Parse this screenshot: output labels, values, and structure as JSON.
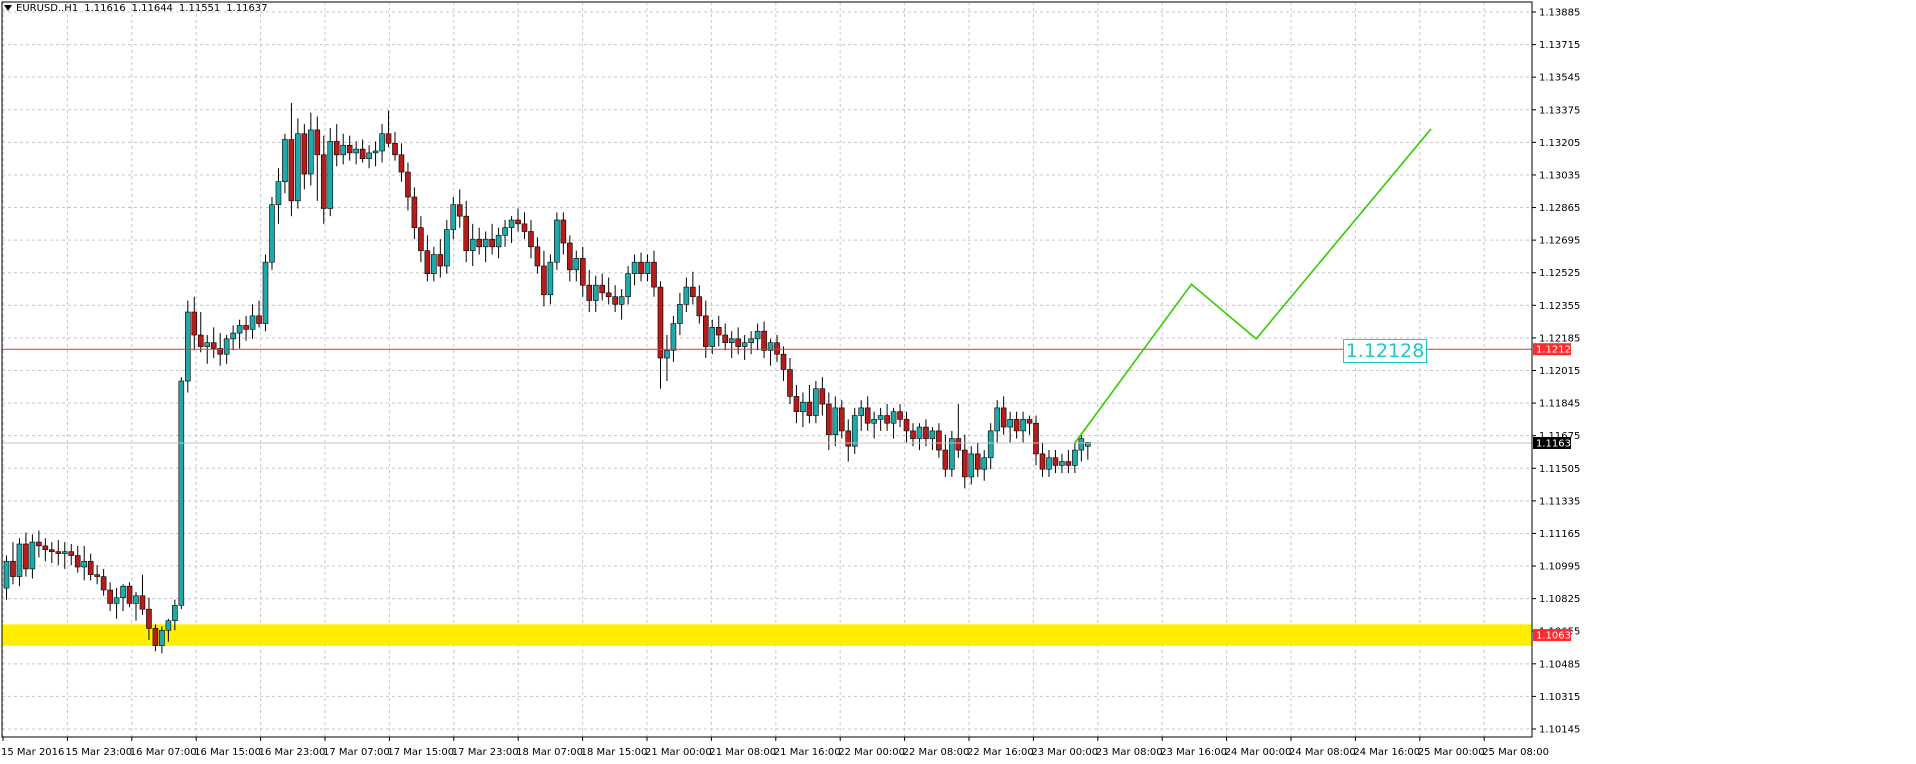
{
  "header": {
    "symbol": "EURUSD..H1",
    "open": "1.11616",
    "high": "1.11644",
    "low": "1.11551",
    "close": "1.11637"
  },
  "colors": {
    "grid": "#c8c8c8",
    "bull": "#1fa9a9",
    "bear": "#b71c1c",
    "wick": "#000000",
    "resistance": "#ff2a2a",
    "support_band": "#ffee00",
    "forecast": "#33cc00",
    "current_price_line": "#c0c0c0",
    "label_text": "#1fc7c7"
  },
  "chart_data": {
    "type": "candlestick",
    "ylim": [
      1.10145,
      1.13885
    ],
    "y_ticks": [
      "1.13885",
      "1.13715",
      "1.13545",
      "1.13375",
      "1.13205",
      "1.13035",
      "1.12865",
      "1.12695",
      "1.12525",
      "1.12355",
      "1.12185",
      "1.12015",
      "1.11845",
      "1.11675",
      "1.11505",
      "1.11335",
      "1.11165",
      "1.10995",
      "1.10825",
      "1.10655",
      "1.10485",
      "1.10315",
      "1.10145"
    ],
    "x_labels": [
      "15 Mar 2016",
      "15 Mar 23:00",
      "16 Mar 07:00",
      "16 Mar 15:00",
      "16 Mar 23:00",
      "17 Mar 07:00",
      "17 Mar 15:00",
      "17 Mar 23:00",
      "18 Mar 07:00",
      "18 Mar 15:00",
      "21 Mar 00:00",
      "21 Mar 08:00",
      "21 Mar 16:00",
      "22 Mar 00:00",
      "22 Mar 08:00",
      "22 Mar 16:00",
      "23 Mar 00:00",
      "23 Mar 08:00",
      "23 Mar 16:00",
      "24 Mar 00:00",
      "24 Mar 08:00",
      "24 Mar 16:00",
      "25 Mar 00:00",
      "25 Mar 08:00"
    ],
    "candles": [
      [
        1.1088,
        1.1105,
        1.1082,
        1.1102
      ],
      [
        1.1102,
        1.1112,
        1.109,
        1.1094
      ],
      [
        1.1094,
        1.1114,
        1.1089,
        1.1111
      ],
      [
        1.1111,
        1.1117,
        1.1094,
        1.1098
      ],
      [
        1.1098,
        1.1116,
        1.1093,
        1.1112
      ],
      [
        1.1112,
        1.1118,
        1.1104,
        1.111
      ],
      [
        1.111,
        1.1114,
        1.1102,
        1.1108
      ],
      [
        1.1108,
        1.1112,
        1.1101,
        1.1107
      ],
      [
        1.1107,
        1.1113,
        1.11,
        1.1106
      ],
      [
        1.1106,
        1.1112,
        1.1098,
        1.1107
      ],
      [
        1.1107,
        1.1111,
        1.11,
        1.1105
      ],
      [
        1.1105,
        1.111,
        1.1096,
        1.1099
      ],
      [
        1.1099,
        1.111,
        1.1092,
        1.1102
      ],
      [
        1.1102,
        1.1106,
        1.1092,
        1.1095
      ],
      [
        1.1095,
        1.11,
        1.109,
        1.1094
      ],
      [
        1.1094,
        1.1098,
        1.1084,
        1.1087
      ],
      [
        1.1087,
        1.1091,
        1.1076,
        1.108
      ],
      [
        1.108,
        1.1088,
        1.1072,
        1.1083
      ],
      [
        1.1083,
        1.109,
        1.1076,
        1.1089
      ],
      [
        1.1089,
        1.1091,
        1.1078,
        1.108
      ],
      [
        1.108,
        1.1086,
        1.1071,
        1.1084
      ],
      [
        1.1084,
        1.1095,
        1.1074,
        1.1077
      ],
      [
        1.1077,
        1.1083,
        1.1061,
        1.1067
      ],
      [
        1.1067,
        1.1069,
        1.1055,
        1.1058
      ],
      [
        1.1058,
        1.1068,
        1.1054,
        1.1066
      ],
      [
        1.1066,
        1.1072,
        1.106,
        1.1071
      ],
      [
        1.1071,
        1.1082,
        1.1066,
        1.1079
      ],
      [
        1.1079,
        1.1198,
        1.1077,
        1.1196
      ],
      [
        1.1196,
        1.1238,
        1.119,
        1.1232
      ],
      [
        1.1232,
        1.124,
        1.1212,
        1.122
      ],
      [
        1.122,
        1.1232,
        1.1211,
        1.1214
      ],
      [
        1.1214,
        1.122,
        1.1205,
        1.1216
      ],
      [
        1.1216,
        1.1224,
        1.1208,
        1.1213
      ],
      [
        1.1213,
        1.1221,
        1.1204,
        1.121
      ],
      [
        1.121,
        1.122,
        1.1205,
        1.1218
      ],
      [
        1.1218,
        1.1225,
        1.1212,
        1.1221
      ],
      [
        1.1221,
        1.1228,
        1.1213,
        1.1225
      ],
      [
        1.1225,
        1.123,
        1.1217,
        1.1223
      ],
      [
        1.1223,
        1.1236,
        1.1218,
        1.123
      ],
      [
        1.123,
        1.1238,
        1.1224,
        1.1226
      ],
      [
        1.1226,
        1.1262,
        1.1222,
        1.1258
      ],
      [
        1.1258,
        1.1292,
        1.1254,
        1.1288
      ],
      [
        1.1288,
        1.1307,
        1.1278,
        1.13
      ],
      [
        1.13,
        1.1325,
        1.1294,
        1.1322
      ],
      [
        1.1322,
        1.1341,
        1.1282,
        1.129
      ],
      [
        1.129,
        1.1333,
        1.1286,
        1.1325
      ],
      [
        1.1325,
        1.133,
        1.1296,
        1.1304
      ],
      [
        1.1304,
        1.1336,
        1.1298,
        1.1327
      ],
      [
        1.1327,
        1.1334,
        1.129,
        1.1314
      ],
      [
        1.1314,
        1.1324,
        1.1278,
        1.1286
      ],
      [
        1.1286,
        1.1328,
        1.1282,
        1.1321
      ],
      [
        1.1321,
        1.133,
        1.1308,
        1.1314
      ],
      [
        1.1314,
        1.1325,
        1.1309,
        1.1319
      ],
      [
        1.1319,
        1.1324,
        1.1311,
        1.1315
      ],
      [
        1.1315,
        1.1321,
        1.1309,
        1.1317
      ],
      [
        1.1317,
        1.1322,
        1.131,
        1.1312
      ],
      [
        1.1312,
        1.1319,
        1.1307,
        1.1315
      ],
      [
        1.1315,
        1.1321,
        1.1308,
        1.1316
      ],
      [
        1.1316,
        1.133,
        1.131,
        1.1325
      ],
      [
        1.1325,
        1.1337,
        1.1318,
        1.132
      ],
      [
        1.132,
        1.1326,
        1.1311,
        1.1314
      ],
      [
        1.1314,
        1.132,
        1.13,
        1.1305
      ],
      [
        1.1305,
        1.131,
        1.1285,
        1.1292
      ],
      [
        1.1292,
        1.1297,
        1.127,
        1.1276
      ],
      [
        1.1276,
        1.1282,
        1.1258,
        1.1264
      ],
      [
        1.1264,
        1.1272,
        1.1248,
        1.1252
      ],
      [
        1.1252,
        1.1266,
        1.1248,
        1.1262
      ],
      [
        1.1262,
        1.127,
        1.125,
        1.1256
      ],
      [
        1.1256,
        1.128,
        1.1252,
        1.1275
      ],
      [
        1.1275,
        1.1292,
        1.127,
        1.1288
      ],
      [
        1.1288,
        1.1296,
        1.1276,
        1.1282
      ],
      [
        1.1282,
        1.129,
        1.1258,
        1.1264
      ],
      [
        1.1264,
        1.1278,
        1.1256,
        1.127
      ],
      [
        1.127,
        1.1276,
        1.1262,
        1.1266
      ],
      [
        1.1266,
        1.1274,
        1.1258,
        1.127
      ],
      [
        1.127,
        1.1278,
        1.1262,
        1.1266
      ],
      [
        1.1266,
        1.1276,
        1.126,
        1.1272
      ],
      [
        1.1272,
        1.128,
        1.1266,
        1.1276
      ],
      [
        1.1276,
        1.1282,
        1.1268,
        1.128
      ],
      [
        1.128,
        1.1286,
        1.1274,
        1.1278
      ],
      [
        1.1278,
        1.1284,
        1.127,
        1.1274
      ],
      [
        1.1274,
        1.128,
        1.126,
        1.1266
      ],
      [
        1.1266,
        1.1271,
        1.1252,
        1.1256
      ],
      [
        1.1256,
        1.1264,
        1.1235,
        1.1241
      ],
      [
        1.1241,
        1.1262,
        1.1236,
        1.1258
      ],
      [
        1.1258,
        1.1284,
        1.1254,
        1.128
      ],
      [
        1.128,
        1.1284,
        1.1262,
        1.1268
      ],
      [
        1.1268,
        1.1272,
        1.1248,
        1.1254
      ],
      [
        1.1254,
        1.1264,
        1.1248,
        1.126
      ],
      [
        1.126,
        1.1266,
        1.124,
        1.1246
      ],
      [
        1.1246,
        1.1254,
        1.1232,
        1.1238
      ],
      [
        1.1238,
        1.1251,
        1.1232,
        1.1246
      ],
      [
        1.1246,
        1.1252,
        1.1238,
        1.1242
      ],
      [
        1.1242,
        1.125,
        1.1236,
        1.124
      ],
      [
        1.124,
        1.1246,
        1.1232,
        1.1236
      ],
      [
        1.1236,
        1.1244,
        1.1228,
        1.124
      ],
      [
        1.124,
        1.1256,
        1.1236,
        1.1252
      ],
      [
        1.1252,
        1.1262,
        1.1246,
        1.1258
      ],
      [
        1.1258,
        1.1263,
        1.1248,
        1.1252
      ],
      [
        1.1252,
        1.1262,
        1.1248,
        1.1258
      ],
      [
        1.1258,
        1.1264,
        1.124,
        1.1245
      ],
      [
        1.1245,
        1.1248,
        1.1192,
        1.1208
      ],
      [
        1.1208,
        1.122,
        1.1196,
        1.1212
      ],
      [
        1.1212,
        1.123,
        1.1206,
        1.1226
      ],
      [
        1.1226,
        1.1242,
        1.122,
        1.1236
      ],
      [
        1.1236,
        1.125,
        1.1232,
        1.1245
      ],
      [
        1.1245,
        1.1253,
        1.1236,
        1.124
      ],
      [
        1.124,
        1.1246,
        1.1226,
        1.123
      ],
      [
        1.123,
        1.1238,
        1.1208,
        1.1214
      ],
      [
        1.1214,
        1.1228,
        1.121,
        1.1224
      ],
      [
        1.1224,
        1.123,
        1.1214,
        1.122
      ],
      [
        1.122,
        1.1226,
        1.1212,
        1.1216
      ],
      [
        1.1216,
        1.1222,
        1.1208,
        1.1218
      ],
      [
        1.1218,
        1.1224,
        1.121,
        1.1214
      ],
      [
        1.1214,
        1.122,
        1.1207,
        1.1216
      ],
      [
        1.1216,
        1.1222,
        1.121,
        1.1218
      ],
      [
        1.1218,
        1.1226,
        1.1212,
        1.1222
      ],
      [
        1.1222,
        1.1227,
        1.1208,
        1.1212
      ],
      [
        1.1212,
        1.1218,
        1.1204,
        1.1216
      ],
      [
        1.1216,
        1.122,
        1.1206,
        1.121
      ],
      [
        1.121,
        1.1214,
        1.1196,
        1.1202
      ],
      [
        1.1202,
        1.1208,
        1.1184,
        1.1188
      ],
      [
        1.1188,
        1.1194,
        1.1174,
        1.118
      ],
      [
        1.118,
        1.119,
        1.1172,
        1.1185
      ],
      [
        1.1185,
        1.1194,
        1.1174,
        1.1178
      ],
      [
        1.1178,
        1.1196,
        1.1174,
        1.1192
      ],
      [
        1.1192,
        1.1198,
        1.1178,
        1.1184
      ],
      [
        1.1184,
        1.119,
        1.116,
        1.1168
      ],
      [
        1.1168,
        1.1188,
        1.1162,
        1.1182
      ],
      [
        1.1182,
        1.1186,
        1.1166,
        1.117
      ],
      [
        1.117,
        1.1176,
        1.1154,
        1.1162
      ],
      [
        1.1162,
        1.1182,
        1.1158,
        1.1178
      ],
      [
        1.1178,
        1.1186,
        1.117,
        1.1182
      ],
      [
        1.1182,
        1.1188,
        1.117,
        1.1174
      ],
      [
        1.1174,
        1.118,
        1.1166,
        1.1176
      ],
      [
        1.1176,
        1.1182,
        1.117,
        1.1178
      ],
      [
        1.1178,
        1.1184,
        1.117,
        1.1174
      ],
      [
        1.1174,
        1.1182,
        1.1166,
        1.118
      ],
      [
        1.118,
        1.1184,
        1.1172,
        1.1176
      ],
      [
        1.1176,
        1.118,
        1.1164,
        1.117
      ],
      [
        1.117,
        1.1174,
        1.1162,
        1.1166
      ],
      [
        1.1166,
        1.1174,
        1.116,
        1.1172
      ],
      [
        1.1172,
        1.1176,
        1.1162,
        1.1166
      ],
      [
        1.1166,
        1.1172,
        1.116,
        1.117
      ],
      [
        1.117,
        1.1174,
        1.1156,
        1.116
      ],
      [
        1.116,
        1.1168,
        1.1146,
        1.115
      ],
      [
        1.115,
        1.117,
        1.1146,
        1.1166
      ],
      [
        1.1166,
        1.1184,
        1.1156,
        1.116
      ],
      [
        1.116,
        1.1168,
        1.114,
        1.1146
      ],
      [
        1.1146,
        1.1162,
        1.1142,
        1.1158
      ],
      [
        1.1158,
        1.1164,
        1.1146,
        1.115
      ],
      [
        1.115,
        1.116,
        1.1144,
        1.1156
      ],
      [
        1.1156,
        1.1174,
        1.115,
        1.117
      ],
      [
        1.117,
        1.1186,
        1.1164,
        1.1182
      ],
      [
        1.1182,
        1.1188,
        1.1168,
        1.1172
      ],
      [
        1.1172,
        1.118,
        1.1164,
        1.1176
      ],
      [
        1.1176,
        1.118,
        1.1166,
        1.117
      ],
      [
        1.117,
        1.118,
        1.1164,
        1.1176
      ],
      [
        1.1176,
        1.1178,
        1.1168,
        1.1174
      ],
      [
        1.1174,
        1.1178,
        1.1152,
        1.1158
      ],
      [
        1.1158,
        1.1164,
        1.1146,
        1.115
      ],
      [
        1.115,
        1.116,
        1.1146,
        1.1156
      ],
      [
        1.1156,
        1.116,
        1.1148,
        1.1152
      ],
      [
        1.1152,
        1.1158,
        1.1148,
        1.1154
      ],
      [
        1.1154,
        1.116,
        1.1148,
        1.1152
      ],
      [
        1.1152,
        1.1164,
        1.1148,
        1.116
      ],
      [
        1.116,
        1.1168,
        1.1154,
        1.1166
      ],
      [
        1.1162,
        1.1164,
        1.1155,
        1.1164
      ]
    ],
    "levels": {
      "resistance": {
        "price": 1.12126,
        "label": "1.12126"
      },
      "support": {
        "price": 1.10635,
        "label": "1.10635",
        "band_top": 1.1067,
        "band_bottom": 1.106
      },
      "current": {
        "price": 1.11637,
        "label": "1.11637"
      }
    },
    "forecast_path": [
      [
        165,
        1.11637
      ],
      [
        183,
        1.12465
      ],
      [
        193,
        1.1218
      ],
      [
        220,
        1.13275
      ]
    ],
    "annotation": {
      "text": "1.12128",
      "at_index": 211
    },
    "grid": true
  }
}
